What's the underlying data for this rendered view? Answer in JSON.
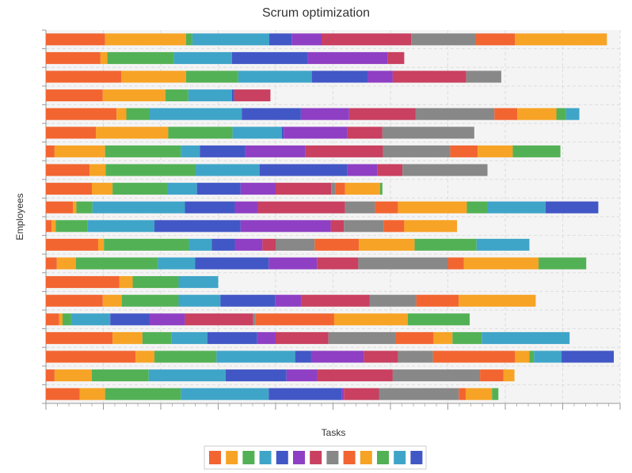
{
  "chart_data": {
    "type": "stacked-bar-horizontal",
    "title": "Scrum optimization",
    "x_label": "Tasks",
    "y_label": "Employees",
    "xlim": [
      0,
      100
    ],
    "xticks": [
      0,
      10,
      20,
      30,
      40,
      50,
      60,
      70,
      80,
      90,
      100
    ],
    "grid": true,
    "legend": "bottom",
    "series": [
      {
        "color": "#f26531",
        "values": [
          10.3,
          9.5,
          13.1,
          9.9,
          12.3,
          8.7,
          1.5,
          7.6,
          8.0,
          4.7,
          1.0,
          9.1,
          1.9,
          12.8,
          9.9,
          2.3,
          11.6,
          15.6,
          1.5,
          5.9
        ]
      },
      {
        "color": "#f7a325",
        "values": [
          14.1,
          1.2,
          11.3,
          10.9,
          1.7,
          12.6,
          8.8,
          2.8,
          3.6,
          0.6,
          0.7,
          1.0,
          3.3,
          2.3,
          3.3,
          0.6,
          5.2,
          3.3,
          6.5,
          4.4
        ]
      },
      {
        "color": "#53b155",
        "values": [
          1.1,
          11.6,
          9.1,
          4.0,
          4.0,
          11.2,
          13.2,
          15.6,
          9.5,
          2.8,
          5.5,
          14.8,
          14.3,
          8.0,
          9.9,
          1.5,
          5.1,
          10.8,
          9.9,
          13.2
        ]
      },
      {
        "color": "#3fa5c8",
        "values": [
          13.4,
          10.1,
          12.8,
          7.6,
          16.1,
          8.6,
          3.3,
          11.2,
          5.2,
          16.1,
          11.7,
          4.0,
          6.5,
          6.9,
          7.3,
          6.8,
          6.2,
          13.7,
          13.4,
          15.3
        ]
      },
      {
        "color": "#4257c6",
        "values": [
          3.9,
          13.2,
          9.7,
          0.4,
          10.3,
          0.3,
          7.9,
          15.3,
          7.6,
          8.7,
          15.0,
          4.0,
          12.8,
          0,
          9.5,
          6.8,
          8.7,
          2.8,
          10.6,
          12.7
        ]
      },
      {
        "color": "#8f3fc4",
        "values": [
          5.2,
          13.9,
          4.4,
          0,
          8.4,
          11.1,
          10.5,
          5.2,
          6.1,
          4.0,
          15.7,
          4.8,
          8.4,
          0,
          4.6,
          6.2,
          3.2,
          9.2,
          5.4,
          0.4
        ]
      },
      {
        "color": "#c94060",
        "values": [
          15.6,
          2.9,
          12.8,
          6.3,
          11.6,
          6.1,
          13.5,
          4.4,
          9.7,
          15.2,
          2.3,
          2.3,
          7.2,
          0,
          11.9,
          11.9,
          9.2,
          5.9,
          13.1,
          6.1
        ]
      },
      {
        "color": "#888888",
        "values": [
          11.3,
          0,
          6.1,
          0,
          13.7,
          16.0,
          11.7,
          14.8,
          0.7,
          5.2,
          6.9,
          6.8,
          15.6,
          0,
          8.1,
          0.4,
          11.7,
          6.1,
          15.2,
          13.9
        ]
      },
      {
        "color": "#f26531",
        "values": [
          6.8,
          0,
          0,
          0,
          4.0,
          0,
          4.8,
          0,
          1.7,
          4.0,
          3.6,
          7.7,
          2.8,
          0,
          7.4,
          13.7,
          6.6,
          14.3,
          4.1,
          1.2
        ]
      },
      {
        "color": "#f7a325",
        "values": [
          16.0,
          0,
          0,
          0,
          6.8,
          0,
          6.1,
          0,
          6.1,
          12.0,
          9.2,
          9.7,
          13.0,
          0,
          13.4,
          12.8,
          3.3,
          2.5,
          1.9,
          4.6
        ]
      },
      {
        "color": "#53b155",
        "values": [
          0,
          0,
          0,
          0,
          1.7,
          0,
          8.3,
          0,
          0.4,
          3.6,
          0,
          10.8,
          8.3,
          0,
          0,
          10.8,
          5.1,
          0.8,
          0,
          1.1
        ]
      },
      {
        "color": "#3fa5c8",
        "values": [
          0,
          0,
          0,
          0,
          2.3,
          0,
          0,
          0,
          0,
          10.1,
          0,
          9.2,
          0,
          0,
          0,
          0,
          15.3,
          4.8,
          0,
          0
        ]
      },
      {
        "color": "#4257c6",
        "values": [
          0,
          0,
          0,
          0,
          0,
          0,
          0,
          0,
          0,
          9.2,
          0,
          0,
          0,
          0,
          0,
          0,
          0,
          9.1,
          0,
          0
        ]
      }
    ]
  }
}
